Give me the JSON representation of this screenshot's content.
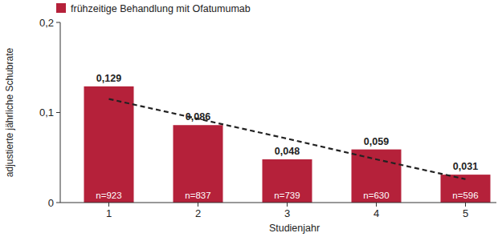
{
  "chart_data": {
    "type": "bar",
    "x_label": "Studienjahr",
    "y_label": "adjustierte jährliche Schubrate",
    "categories": [
      "1",
      "2",
      "3",
      "4",
      "5"
    ],
    "series": [
      {
        "name": "frühzeitige Behandlung mit Ofatumumab",
        "type": "bar",
        "color": "#b5213a",
        "values": [
          0.129,
          0.086,
          0.048,
          0.059,
          0.031
        ],
        "value_labels": [
          "0,129",
          "0,086",
          "0,048",
          "0,059",
          "0,031"
        ]
      },
      {
        "type": "line",
        "color": "#222222",
        "line_style": "dashed",
        "values": [
          0.115,
          0.093,
          0.071,
          0.048,
          0.026
        ]
      }
    ],
    "annotations": [
      "n=923",
      "n=837",
      "n=739",
      "n=630",
      "n=596"
    ],
    "ylim": [
      0,
      0.2
    ],
    "yticks": [
      0,
      {
        "value": 0.1,
        "label": "0,1"
      },
      {
        "value": 0.2,
        "label": "0,2"
      }
    ],
    "grid": false,
    "legend": "top-left",
    "data_labels": true
  }
}
